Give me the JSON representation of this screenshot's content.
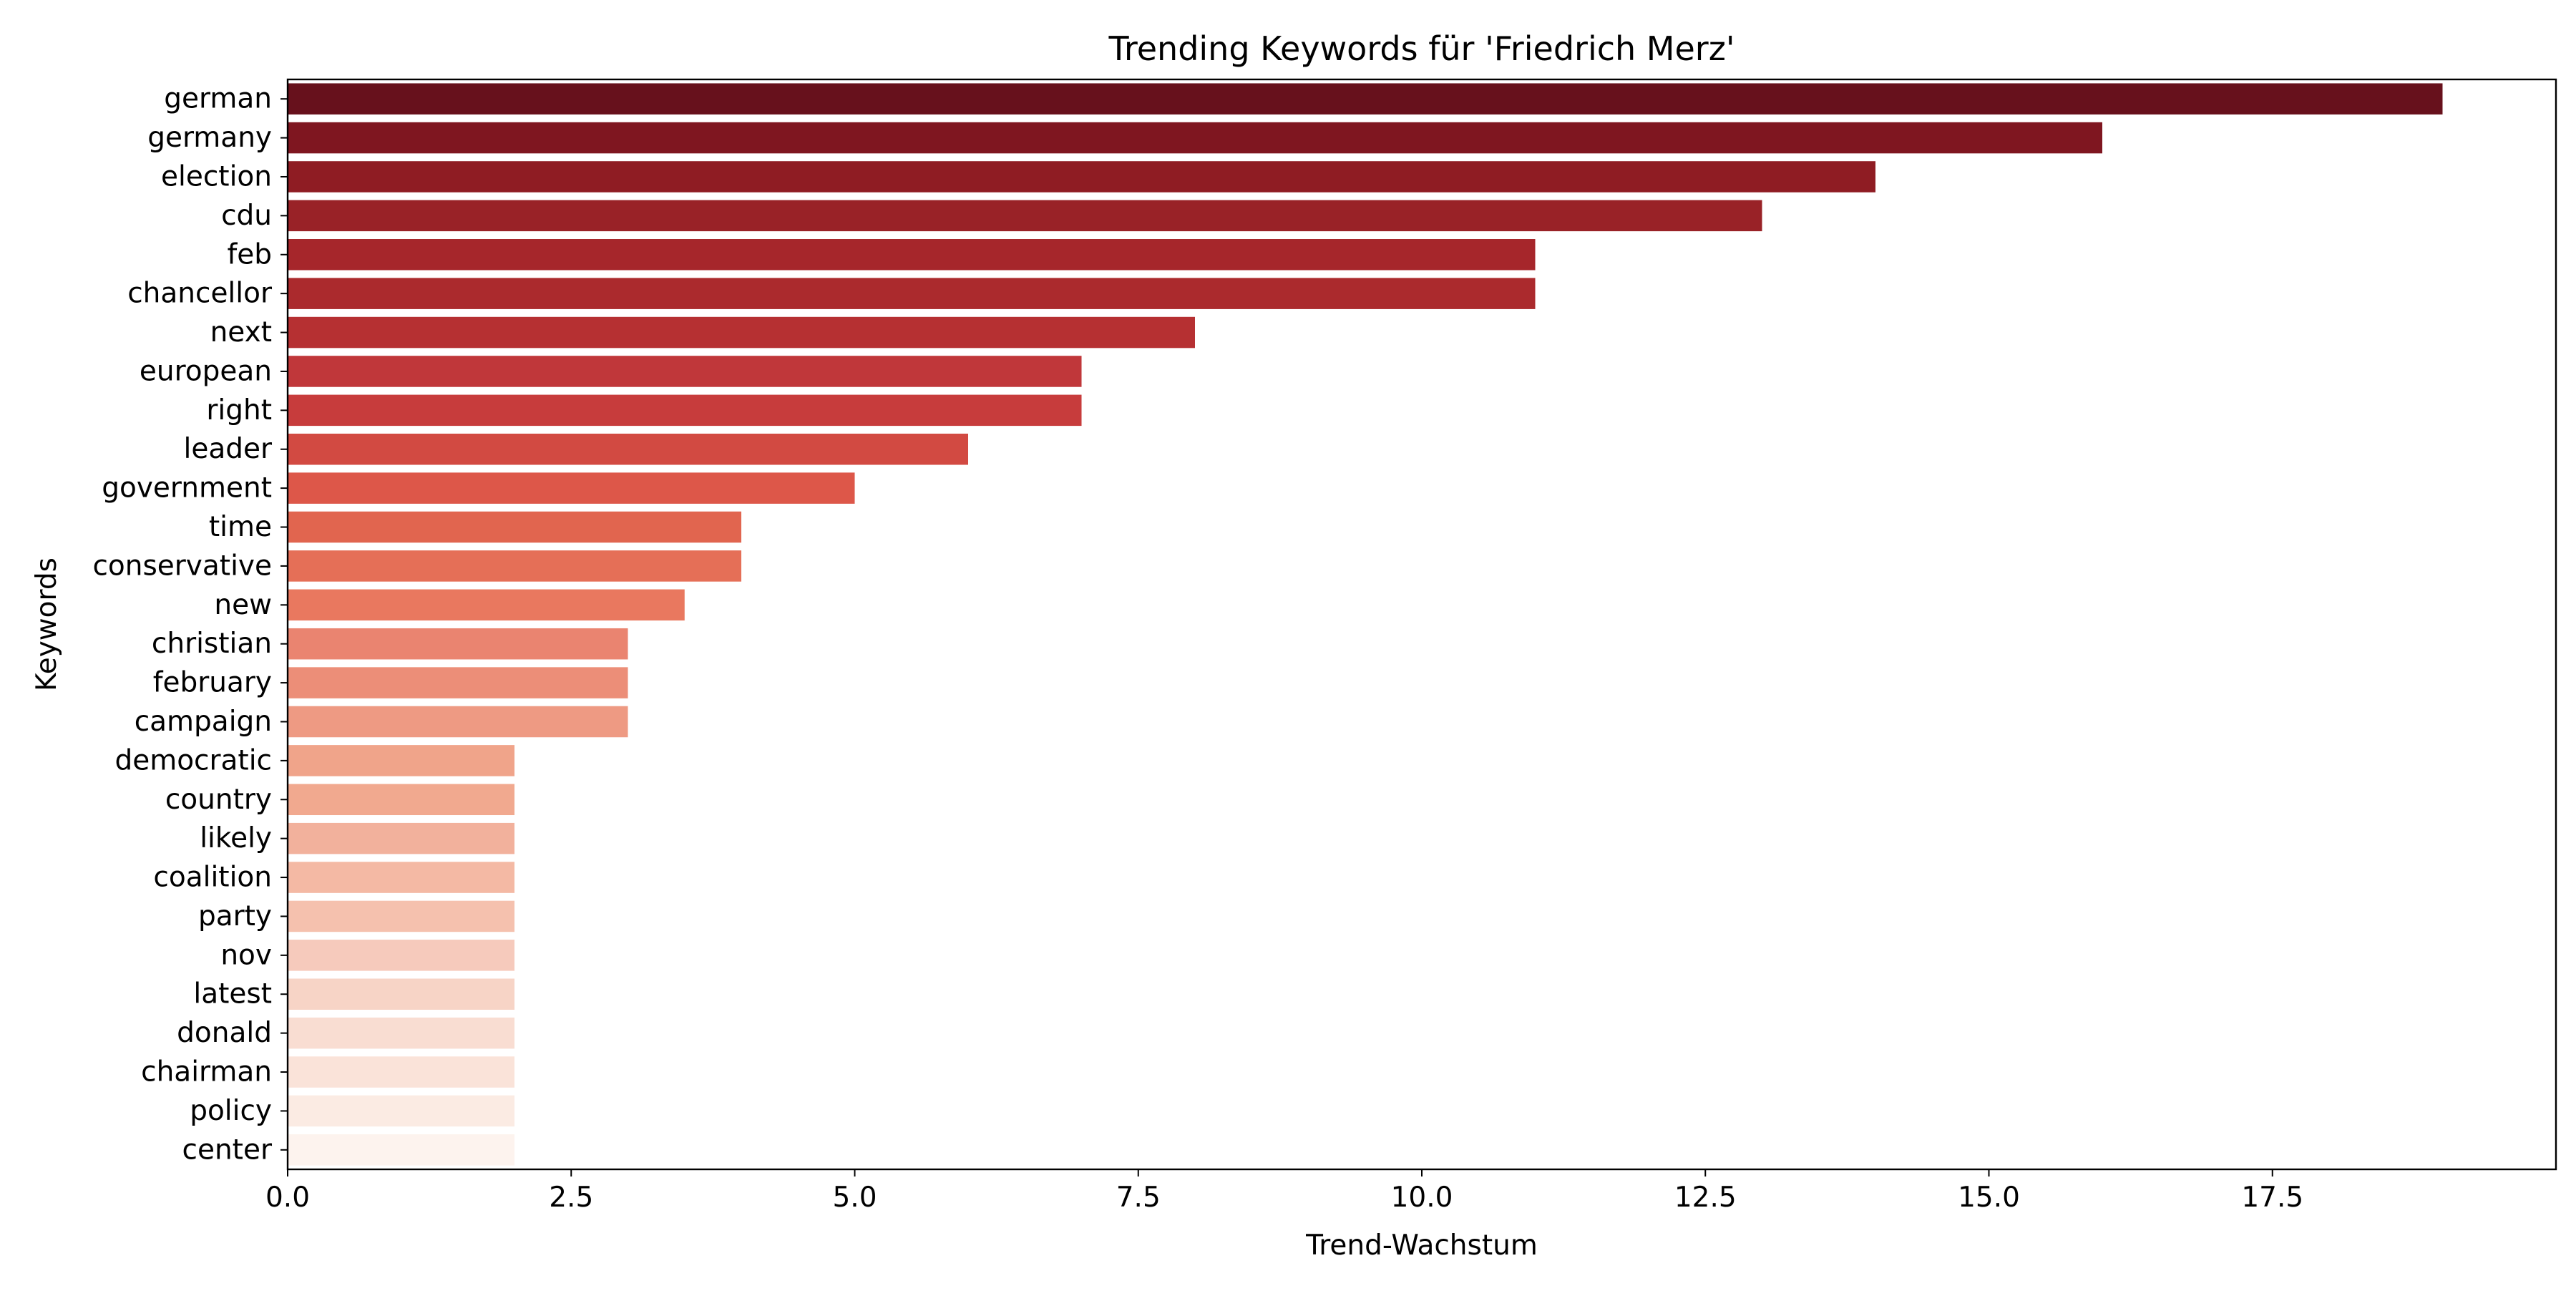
{
  "chart_data": {
    "type": "bar",
    "orientation": "horizontal",
    "title": "Trending Keywords für 'Friedrich Merz'",
    "xlabel": "Trend-Wachstum",
    "ylabel": "Keywords",
    "xlim": [
      0,
      20
    ],
    "xticks": [
      0.0,
      2.5,
      5.0,
      7.5,
      10.0,
      12.5,
      15.0,
      17.5
    ],
    "xtick_labels": [
      "0.0",
      "2.5",
      "5.0",
      "7.5",
      "10.0",
      "12.5",
      "15.0",
      "17.5"
    ],
    "grid": false,
    "legend": false,
    "palette": "Reds (dark to light)",
    "categories": [
      "german",
      "germany",
      "election",
      "cdu",
      "feb",
      "chancellor",
      "next",
      "european",
      "right",
      "leader",
      "government",
      "time",
      "conservative",
      "new",
      "christian",
      "february",
      "campaign",
      "democratic",
      "country",
      "likely",
      "coalition",
      "party",
      "nov",
      "latest",
      "donald",
      "chairman",
      "policy",
      "center"
    ],
    "values": [
      19,
      16,
      14,
      13,
      11,
      11,
      8,
      7,
      7,
      6,
      5,
      4,
      4,
      3.5,
      3,
      3,
      3,
      2,
      2,
      2,
      2,
      2,
      2,
      2,
      2,
      2,
      2,
      2
    ],
    "colors": [
      "#67111c",
      "#7f1620",
      "#8f1c23",
      "#992227",
      "#a6262b",
      "#ab2a2d",
      "#b63032",
      "#c0373a",
      "#c73c3c",
      "#d24a42",
      "#dd5749",
      "#e1654f",
      "#e56f57",
      "#e9785f",
      "#ea8470",
      "#ec8e78",
      "#ee9a83",
      "#f0a48a",
      "#f1a98f",
      "#f2b19c",
      "#f4b9a4",
      "#f5c1ae",
      "#f6cabc",
      "#f7d4c6",
      "#f9ddd2",
      "#fae3d9",
      "#fbebe3",
      "#fdf3ee"
    ]
  }
}
